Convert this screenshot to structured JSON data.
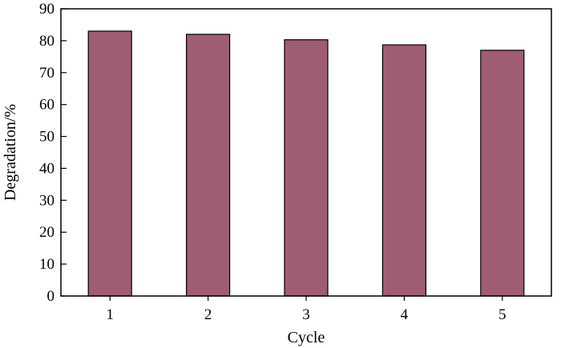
{
  "chart_data": {
    "type": "bar",
    "categories": [
      "1",
      "2",
      "3",
      "4",
      "5"
    ],
    "values": [
      83.0,
      82.0,
      80.3,
      78.7,
      77.0
    ],
    "xlabel": "Cycle",
    "ylabel": "Degradation/%",
    "ylim": [
      0,
      90
    ],
    "yticks": [
      "0",
      "10",
      "20",
      "30",
      "40",
      "50",
      "60",
      "70",
      "80",
      "90"
    ],
    "bar_color": "#9e5d74",
    "grid": false
  }
}
